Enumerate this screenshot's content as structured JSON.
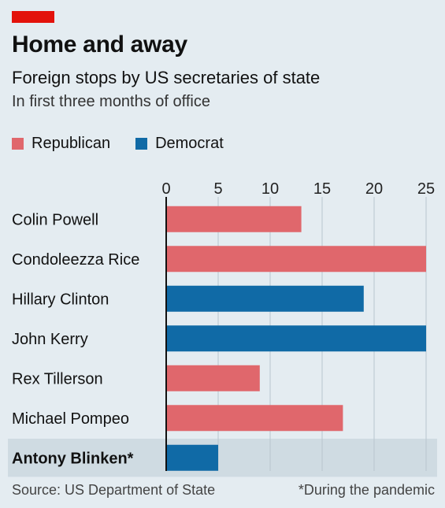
{
  "header": {
    "title": "Home and away",
    "subtitle": "Foreign stops by US secretaries of state",
    "subsubtitle": "In first three months of office"
  },
  "legend": {
    "republican": "Republican",
    "democrat": "Democrat"
  },
  "colors": {
    "republican": "#e0676c",
    "democrat": "#106aa6",
    "accent": "#e3120b",
    "highlight_row": "#cfdbe2",
    "background": "#e4ecf1"
  },
  "chart_data": {
    "type": "bar",
    "orientation": "horizontal",
    "title": "Home and away",
    "subtitle": "Foreign stops by US secretaries of state",
    "xlim": [
      0,
      25
    ],
    "xticks": [
      0,
      5,
      10,
      15,
      20,
      25
    ],
    "grid": true,
    "legend_position": "top-left",
    "categories": [
      "Colin Powell",
      "Condoleezza Rice",
      "Hillary Clinton",
      "John Kerry",
      "Rex Tillerson",
      "Michael Pompeo",
      "Antony Blinken*"
    ],
    "values": [
      13,
      25,
      19,
      25,
      9,
      17,
      5
    ],
    "party": [
      "Republican",
      "Republican",
      "Democrat",
      "Democrat",
      "Republican",
      "Republican",
      "Democrat"
    ],
    "highlight": "Antony Blinken*"
  },
  "footer": {
    "source": "Source: US Department of State",
    "note": "*During the pandemic"
  }
}
